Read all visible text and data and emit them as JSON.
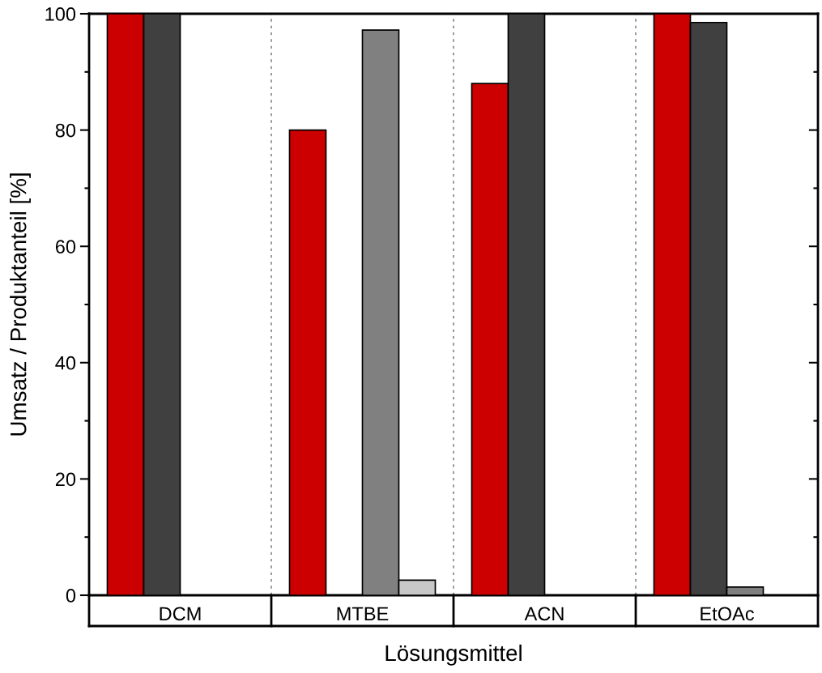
{
  "chart_data": {
    "type": "bar",
    "xlabel": "Lösungsmittel",
    "ylabel": "Umsatz / Produktanteil [%]",
    "categories": [
      "DCM",
      "MTBE",
      "ACN",
      "EtOAc"
    ],
    "series": [
      {
        "color": "#cc0000",
        "values": [
          100,
          80,
          88,
          100
        ]
      },
      {
        "color": "#404040",
        "values": [
          100,
          null,
          100,
          98.5
        ]
      },
      {
        "color": "#808080",
        "values": [
          null,
          97.2,
          null,
          1.4
        ]
      },
      {
        "color": "#c8c8c8",
        "values": [
          null,
          2.6,
          null,
          null
        ]
      }
    ],
    "ylim": [
      0,
      100
    ],
    "yticks": [
      0,
      20,
      40,
      60,
      80,
      100
    ],
    "grid": false,
    "legend": false
  }
}
